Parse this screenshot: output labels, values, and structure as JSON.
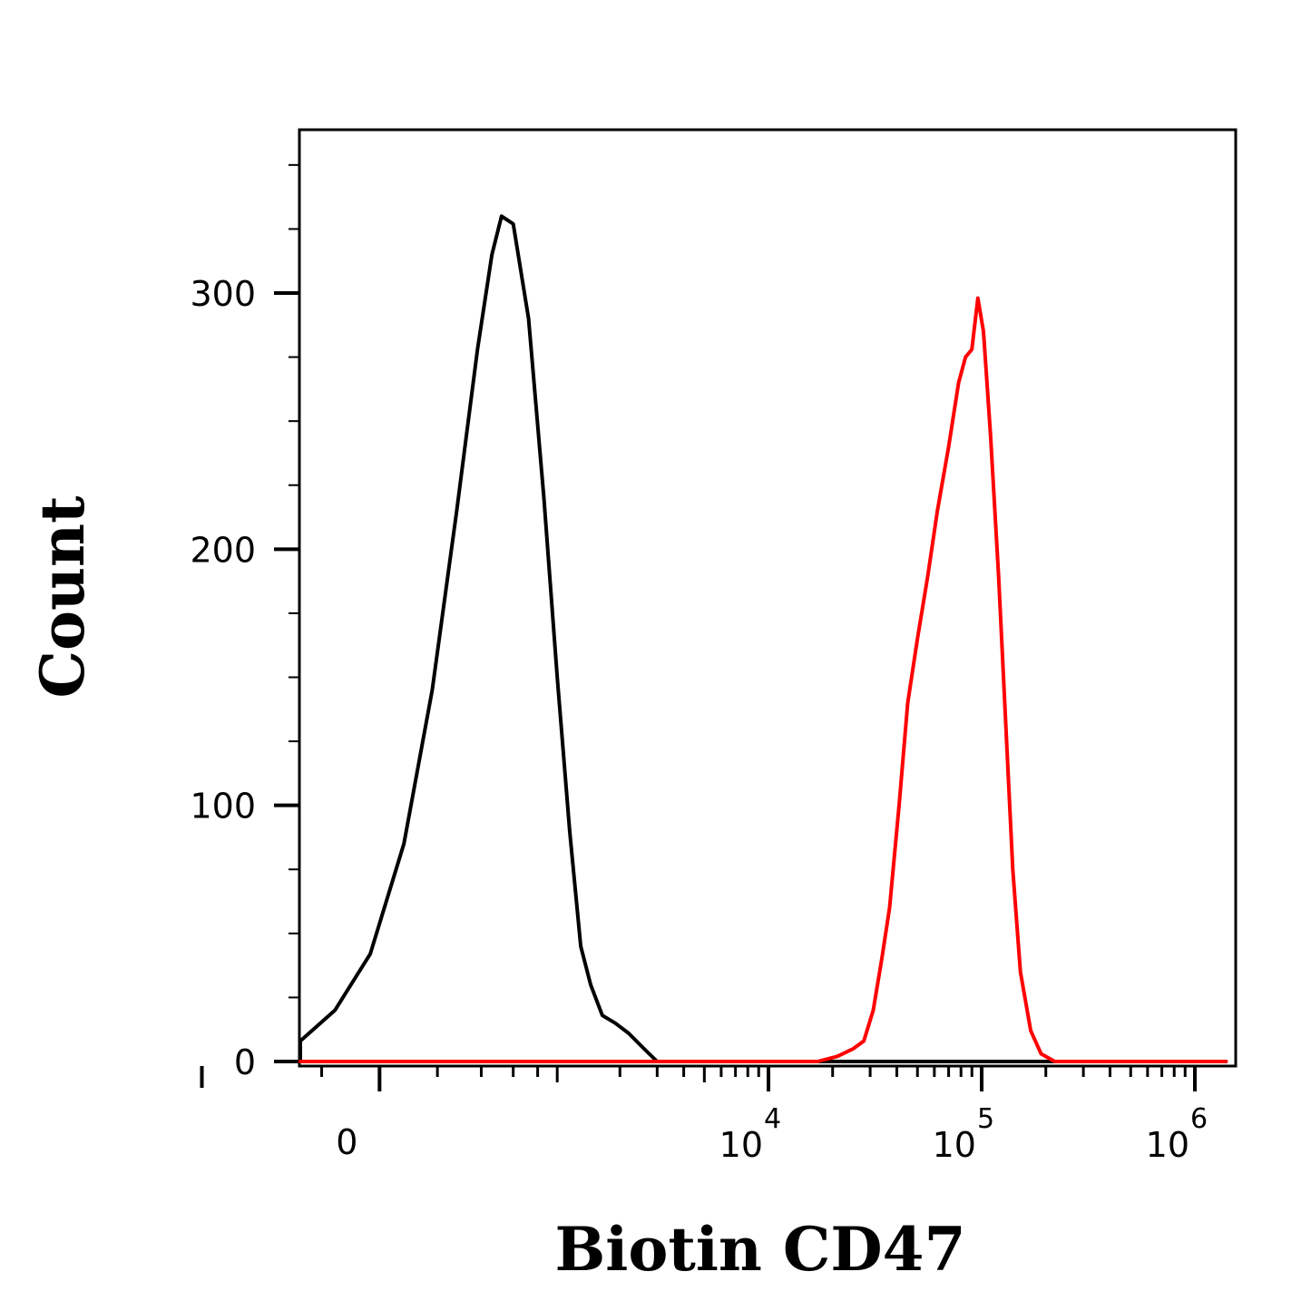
{
  "chart_data": {
    "type": "line",
    "title": "",
    "xlabel": "Biotin CD47",
    "ylabel": "Count",
    "x_scale": "biexponential",
    "x_range": [
      -2000,
      1400000
    ],
    "ylim": [
      0,
      360
    ],
    "grid": false,
    "legend": "none",
    "y_ticks": [
      {
        "value": 0,
        "label": "0"
      },
      {
        "value": 100,
        "label": "100"
      },
      {
        "value": 200,
        "label": "200"
      },
      {
        "value": 300,
        "label": "300"
      }
    ],
    "x_ticks": [
      {
        "value": 0,
        "label": "0",
        "base": "",
        "exp": ""
      },
      {
        "value": 10000,
        "label": "",
        "base": "10",
        "exp": "4"
      },
      {
        "value": 100000,
        "label": "",
        "base": "10",
        "exp": "5"
      },
      {
        "value": 1000000,
        "label": "",
        "base": "10",
        "exp": "6"
      }
    ],
    "series": [
      {
        "color": "#000000",
        "points": [
          [
            -2000,
            0
          ],
          [
            -700,
            0
          ],
          [
            -500,
            2
          ],
          [
            -300,
            8
          ],
          [
            -150,
            20
          ],
          [
            -30,
            42
          ],
          [
            80,
            85
          ],
          [
            180,
            145
          ],
          [
            280,
            215
          ],
          [
            380,
            278
          ],
          [
            460,
            315
          ],
          [
            520,
            330
          ],
          [
            600,
            327
          ],
          [
            720,
            290
          ],
          [
            860,
            220
          ],
          [
            1000,
            150
          ],
          [
            1150,
            90
          ],
          [
            1300,
            45
          ],
          [
            1450,
            30
          ],
          [
            1650,
            18
          ],
          [
            1900,
            15
          ],
          [
            2200,
            11
          ],
          [
            2600,
            5
          ],
          [
            3000,
            0
          ],
          [
            1400000,
            0
          ]
        ]
      },
      {
        "color": "#ff0000",
        "points": [
          [
            -2000,
            0
          ],
          [
            10000,
            0
          ],
          [
            17000,
            0
          ],
          [
            21000,
            2
          ],
          [
            25000,
            5
          ],
          [
            28000,
            8
          ],
          [
            31000,
            20
          ],
          [
            34000,
            40
          ],
          [
            37000,
            60
          ],
          [
            41000,
            100
          ],
          [
            45000,
            140
          ],
          [
            50000,
            165
          ],
          [
            56000,
            190
          ],
          [
            62000,
            215
          ],
          [
            70000,
            240
          ],
          [
            78000,
            265
          ],
          [
            84000,
            275
          ],
          [
            90000,
            278
          ],
          [
            96000,
            298
          ],
          [
            102000,
            285
          ],
          [
            110000,
            245
          ],
          [
            120000,
            190
          ],
          [
            130000,
            130
          ],
          [
            140000,
            75
          ],
          [
            152000,
            35
          ],
          [
            170000,
            12
          ],
          [
            190000,
            3
          ],
          [
            220000,
            0
          ],
          [
            1400000,
            0
          ]
        ]
      }
    ]
  }
}
